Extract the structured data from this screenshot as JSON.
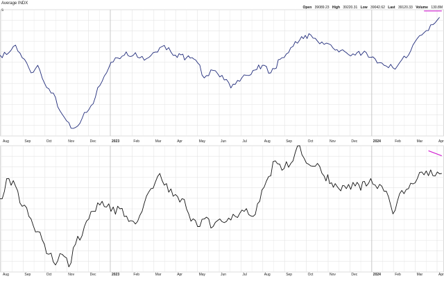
{
  "header": {
    "title": "Average INDX",
    "open_label": "Open",
    "open_value": "39089.23",
    "high_label": "High",
    "high_value": "39220.31",
    "low_label": "Low",
    "low_value": "39042.62",
    "last_label": "Last",
    "last_value": "39120.33",
    "volume_label": "Volume",
    "volume_value": "130.8M",
    "upper_axis_hint": "s"
  },
  "colors": {
    "price_line": "#1f2a7a",
    "indicator_line": "#111111",
    "trendline": "#d01fd0",
    "grid": "#e3e3e3",
    "bold_grid": "#c8c8c8",
    "panel_border": "#cfcfcf"
  },
  "chart_data": [
    {
      "type": "line",
      "panel": "price",
      "title": "Average INDX",
      "x_ticks": [
        "Aug",
        "Sep",
        "Oct",
        "Nov",
        "Dec",
        "2023",
        "Feb",
        "Mar",
        "Apr",
        "May",
        "Jun",
        "Jul",
        "Aug",
        "Sep",
        "Oct",
        "Nov",
        "Dec",
        "2024",
        "Feb",
        "Mar",
        "Apr"
      ],
      "x_tick_bold": [
        false,
        false,
        false,
        false,
        false,
        true,
        false,
        false,
        false,
        false,
        false,
        false,
        false,
        false,
        false,
        false,
        false,
        true,
        false,
        false,
        false
      ],
      "ylim": [
        0,
        100
      ],
      "grid": true,
      "anchors": [
        [
          0,
          64
        ],
        [
          2,
          66
        ],
        [
          3.5,
          72
        ],
        [
          5,
          62
        ],
        [
          7,
          50
        ],
        [
          8.5,
          56
        ],
        [
          10,
          42
        ],
        [
          12,
          34
        ],
        [
          13.5,
          20
        ],
        [
          15,
          12
        ],
        [
          16.5,
          6
        ],
        [
          18.5,
          14
        ],
        [
          20.5,
          24
        ],
        [
          22.5,
          40
        ],
        [
          24.5,
          54
        ],
        [
          26,
          62
        ],
        [
          28,
          64
        ],
        [
          30.5,
          66
        ],
        [
          32.5,
          60
        ],
        [
          34.5,
          66
        ],
        [
          36,
          70
        ],
        [
          38,
          70
        ],
        [
          39.5,
          64
        ],
        [
          42,
          62
        ],
        [
          44.5,
          58
        ],
        [
          46,
          46
        ],
        [
          48,
          52
        ],
        [
          50,
          48
        ],
        [
          52,
          38
        ],
        [
          53.5,
          44
        ],
        [
          55.5,
          48
        ],
        [
          57,
          52
        ],
        [
          59.5,
          56
        ],
        [
          61,
          50
        ],
        [
          63.5,
          62
        ],
        [
          65.5,
          70
        ],
        [
          67.5,
          76
        ],
        [
          70,
          80
        ],
        [
          72,
          73
        ],
        [
          74,
          73
        ],
        [
          75.5,
          68
        ],
        [
          78,
          66
        ],
        [
          80,
          64
        ],
        [
          82.5,
          66
        ],
        [
          84.5,
          61
        ],
        [
          86.5,
          56
        ],
        [
          88.5,
          54
        ],
        [
          90,
          58
        ],
        [
          92,
          64
        ],
        [
          93,
          72
        ],
        [
          95,
          80
        ],
        [
          97,
          88
        ],
        [
          99,
          94
        ]
      ],
      "trendline": [
        [
          95.5,
          99
        ],
        [
          99.5,
          99
        ]
      ]
    },
    {
      "type": "line",
      "panel": "indicator",
      "x_ticks": [
        "Aug",
        "Sep",
        "Oct",
        "Nov",
        "Dec",
        "2023",
        "Feb",
        "Mar",
        "Apr",
        "May",
        "Jun",
        "Jul",
        "Aug",
        "Sep",
        "Oct",
        "Nov",
        "Dec",
        "2024",
        "Feb",
        "Mar",
        "Apr"
      ],
      "x_tick_bold": [
        false,
        false,
        false,
        false,
        false,
        true,
        false,
        false,
        false,
        false,
        false,
        false,
        false,
        false,
        false,
        false,
        false,
        true,
        false,
        false,
        false
      ],
      "ylim": [
        0,
        100
      ],
      "grid": true,
      "anchors": [
        [
          0,
          58
        ],
        [
          2,
          74
        ],
        [
          3.5,
          68
        ],
        [
          5,
          52
        ],
        [
          7,
          42
        ],
        [
          8.5,
          32
        ],
        [
          10,
          22
        ],
        [
          12,
          8
        ],
        [
          14,
          14
        ],
        [
          15.5,
          4
        ],
        [
          17,
          22
        ],
        [
          19,
          36
        ],
        [
          21,
          48
        ],
        [
          23,
          56
        ],
        [
          25,
          48
        ],
        [
          27,
          50
        ],
        [
          29,
          40
        ],
        [
          30.5,
          38
        ],
        [
          32,
          48
        ],
        [
          34,
          66
        ],
        [
          36,
          78
        ],
        [
          37.5,
          70
        ],
        [
          39,
          60
        ],
        [
          41,
          58
        ],
        [
          42.5,
          46
        ],
        [
          44.5,
          36
        ],
        [
          46,
          42
        ],
        [
          48,
          36
        ],
        [
          49.5,
          42
        ],
        [
          51,
          40
        ],
        [
          53,
          44
        ],
        [
          55,
          48
        ],
        [
          57,
          44
        ],
        [
          58,
          54
        ],
        [
          60,
          72
        ],
        [
          62,
          88
        ],
        [
          64,
          82
        ],
        [
          66,
          88
        ],
        [
          67.5,
          100
        ],
        [
          68.5,
          90
        ],
        [
          70,
          84
        ],
        [
          71.5,
          86
        ],
        [
          73,
          76
        ],
        [
          75.5,
          70
        ],
        [
          78,
          66
        ],
        [
          80,
          68
        ],
        [
          82.5,
          68
        ],
        [
          83.5,
          74
        ],
        [
          85,
          66
        ],
        [
          87,
          64
        ],
        [
          88.5,
          46
        ],
        [
          90,
          62
        ],
        [
          92,
          66
        ],
        [
          94,
          74
        ],
        [
          96,
          80
        ],
        [
          98,
          76
        ],
        [
          99.5,
          78
        ]
      ],
      "trendline": [
        [
          96.5,
          96
        ],
        [
          99.5,
          92
        ]
      ]
    }
  ]
}
